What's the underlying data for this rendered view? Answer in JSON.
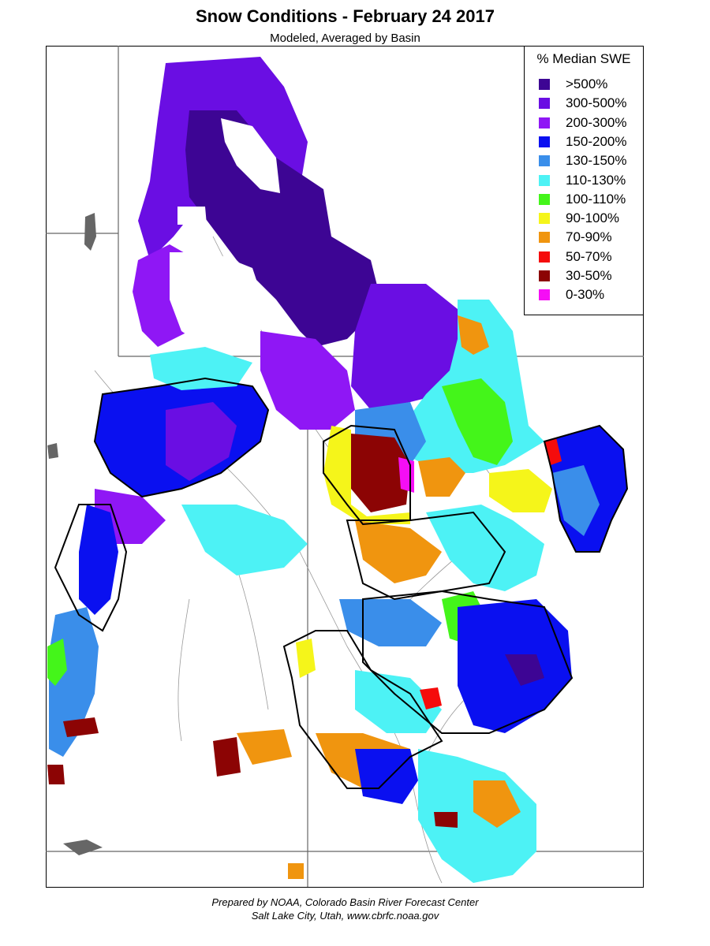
{
  "title": "Snow Conditions - February 24 2017",
  "subtitle": "Modeled, Averaged by Basin",
  "legend": {
    "title": "% Median SWE",
    "items": [
      {
        "label": ">500%",
        "color": "#3d0594"
      },
      {
        "label": "300-500%",
        "color": "#6a0ee3"
      },
      {
        "label": "200-300%",
        "color": "#8f17f5"
      },
      {
        "label": "150-200%",
        "color": "#0a10f0"
      },
      {
        "label": "130-150%",
        "color": "#3a8eea"
      },
      {
        "label": "110-130%",
        "color": "#4df2f5"
      },
      {
        "label": "100-110%",
        "color": "#44f51a"
      },
      {
        "label": "90-100%",
        "color": "#f5f51a"
      },
      {
        "label": "70-90%",
        "color": "#f0950f"
      },
      {
        "label": "50-70%",
        "color": "#f50c0c"
      },
      {
        "label": "30-50%",
        "color": "#8c0404"
      },
      {
        "label": "0-30%",
        "color": "#f50ef5"
      }
    ]
  },
  "footer": {
    "line1": "Prepared by NOAA, Colorado Basin River Forecast Center",
    "line2": "Salt Lake City, Utah, www.cbrfc.noaa.gov"
  }
}
